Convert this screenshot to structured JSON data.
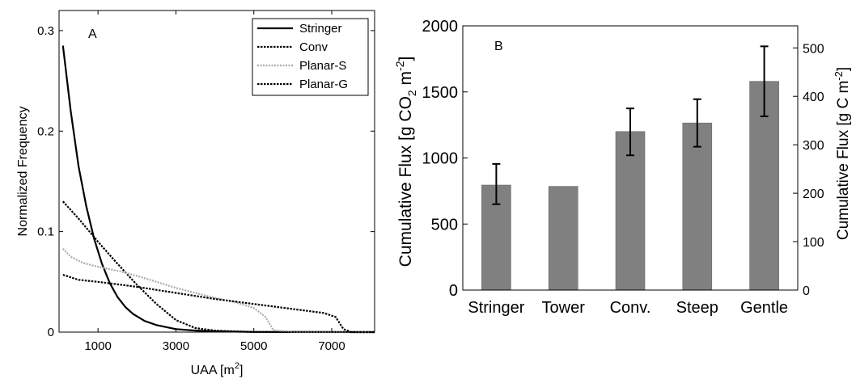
{
  "colors": {
    "bar": "#808080",
    "conv": "#000000",
    "planar_s": "#aaaaaa",
    "planar_g": "#000000"
  },
  "chart_data": [
    {
      "type": "line",
      "panel_label": "A",
      "xlabel": "UAA [m",
      "xlabel_sup": "2",
      "xlabel_end": "]",
      "ylabel": "Normalized Frequency",
      "xlim": [
        0,
        8100
      ],
      "ylim": [
        0,
        0.32
      ],
      "xticks": [
        1000,
        3000,
        5000,
        7000
      ],
      "yticks": [
        0,
        0.1,
        0.2,
        0.3
      ],
      "ytick_labels": [
        "0",
        "0.1",
        "0.2",
        "0.3"
      ],
      "legend": "top-right",
      "series": [
        {
          "name": "Stringer",
          "style": "solid",
          "x": [
            100,
            300,
            500,
            700,
            900,
            1100,
            1300,
            1500,
            1700,
            1900,
            2200,
            2500,
            3000,
            3500,
            4000,
            5000,
            8100
          ],
          "y": [
            0.285,
            0.22,
            0.165,
            0.125,
            0.093,
            0.068,
            0.049,
            0.035,
            0.025,
            0.018,
            0.011,
            0.007,
            0.003,
            0.0015,
            0.0008,
            0.0002,
            0
          ]
        },
        {
          "name": "Conv",
          "style": "dotted",
          "x": [
            100,
            500,
            1000,
            1500,
            2000,
            2500,
            3000,
            3500,
            4000,
            4500,
            5000,
            8100
          ],
          "y": [
            0.13,
            0.113,
            0.09,
            0.068,
            0.047,
            0.028,
            0.012,
            0.004,
            0.0015,
            0.0007,
            0.0002,
            0
          ]
        },
        {
          "name": "Planar-S",
          "style": "dotted-gray",
          "x": [
            100,
            300,
            600,
            1000,
            1500,
            2000,
            2500,
            3000,
            3500,
            4000,
            4500,
            5000,
            5300,
            5500,
            6000,
            8100
          ],
          "y": [
            0.083,
            0.075,
            0.069,
            0.065,
            0.061,
            0.056,
            0.05,
            0.044,
            0.039,
            0.034,
            0.03,
            0.024,
            0.015,
            0.002,
            0,
            0
          ]
        },
        {
          "name": "Planar-G",
          "style": "dotted",
          "x": [
            100,
            500,
            1000,
            2000,
            3000,
            4000,
            5000,
            6000,
            6800,
            7100,
            7300,
            7500,
            8100
          ],
          "y": [
            0.057,
            0.052,
            0.05,
            0.045,
            0.039,
            0.033,
            0.028,
            0.023,
            0.019,
            0.015,
            0.003,
            0,
            0
          ]
        }
      ]
    },
    {
      "type": "bar",
      "panel_label": "B",
      "categories": [
        "Stringer",
        "Tower",
        "Conv.",
        "Steep",
        "Gentle"
      ],
      "values": [
        795,
        785,
        1200,
        1265,
        1580
      ],
      "error_low": [
        650,
        null,
        1020,
        1085,
        1315
      ],
      "error_high": [
        955,
        null,
        1375,
        1445,
        1845
      ],
      "ylim": [
        0,
        2000
      ],
      "yticks": [
        0,
        500,
        1000,
        1500,
        2000
      ],
      "ylabel": "Cumulative Flux [g CO",
      "ylabel_sub": "2",
      "ylabel_mid": " m",
      "ylabel_sup": "-2",
      "ylabel_end": "]",
      "y2ticks": [
        0,
        100,
        200,
        300,
        400,
        500
      ],
      "y2lim": [
        0,
        545.5
      ],
      "y2label": "Cumulative Flux [g C m",
      "y2label_sup": "-2",
      "y2label_end": "]"
    }
  ]
}
